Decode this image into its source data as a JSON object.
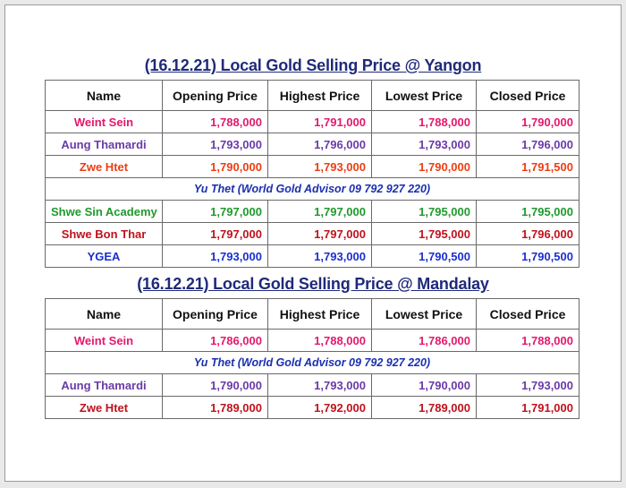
{
  "colors": {
    "title": "#1f2a7a",
    "pink": "#e3196d",
    "purple": "#6a3aa8",
    "orange": "#ee3d12",
    "green": "#1f9a2c",
    "red": "#c0121c",
    "blue": "#1a2fd0",
    "advisor": "#1a2fb0"
  },
  "headers": [
    "Name",
    "Opening Price",
    "Highest Price",
    "Lowest Price",
    "Closed Price"
  ],
  "yangon": {
    "title": "(16.12.21) Local Gold Selling Price @ Yangon",
    "rows": [
      {
        "type": "shop",
        "color": "pink",
        "name": "Weint Sein",
        "opening": "1,788,000",
        "highest": "1,791,000",
        "lowest": "1,788,000",
        "closed": "1,790,000"
      },
      {
        "type": "shop",
        "color": "purple",
        "name": "Aung Thamardi",
        "opening": "1,793,000",
        "highest": "1,796,000",
        "lowest": "1,793,000",
        "closed": "1,796,000"
      },
      {
        "type": "shop",
        "color": "orange",
        "name": "Zwe Htet",
        "opening": "1,790,000",
        "highest": "1,793,000",
        "lowest": "1,790,000",
        "closed": "1,791,500"
      },
      {
        "type": "advisor",
        "text": "Yu Thet (World Gold Advisor 09 792 927 220)"
      },
      {
        "type": "shop",
        "color": "green",
        "name": "Shwe Sin Academy",
        "opening": "1,797,000",
        "highest": "1,797,000",
        "lowest": "1,795,000",
        "closed": "1,795,000"
      },
      {
        "type": "shop",
        "color": "red",
        "name": "Shwe Bon Thar",
        "opening": "1,797,000",
        "highest": "1,797,000",
        "lowest": "1,795,000",
        "closed": "1,796,000"
      },
      {
        "type": "shop",
        "color": "blue",
        "name": "YGEA",
        "opening": "1,793,000",
        "highest": "1,793,000",
        "lowest": "1,790,500",
        "closed": "1,790,500"
      }
    ]
  },
  "mandalay": {
    "title": "(16.12.21) Local Gold Selling Price @ Mandalay",
    "rows": [
      {
        "type": "shop",
        "color": "pink",
        "name": "Weint Sein",
        "opening": "1,786,000",
        "highest": "1,788,000",
        "lowest": "1,786,000",
        "closed": "1,788,000"
      },
      {
        "type": "advisor",
        "text": "Yu Thet (World Gold Advisor 09 792 927 220)"
      },
      {
        "type": "shop",
        "color": "purple",
        "name": "Aung Thamardi",
        "opening": "1,790,000",
        "highest": "1,793,000",
        "lowest": "1,790,000",
        "closed": "1,793,000"
      },
      {
        "type": "shop",
        "color": "red",
        "name": "Zwe Htet",
        "opening": "1,789,000",
        "highest": "1,792,000",
        "lowest": "1,789,000",
        "closed": "1,791,000"
      }
    ]
  }
}
